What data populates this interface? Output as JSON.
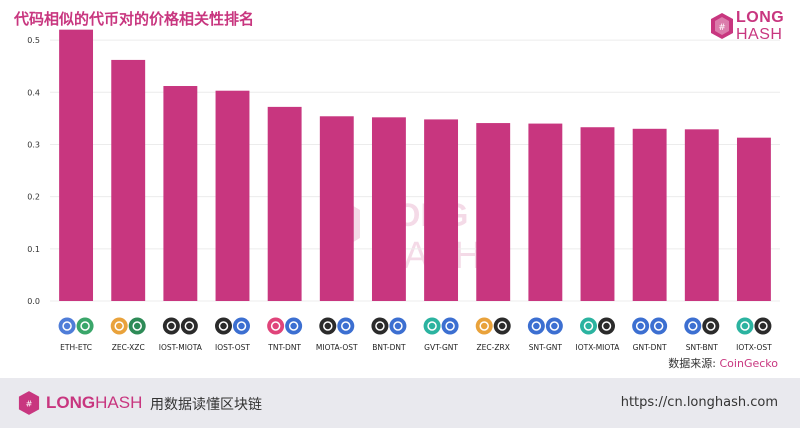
{
  "header": {
    "title": "代码相似的代币对的价格相关性排名"
  },
  "brand": {
    "line1": "LONG",
    "line2": "HASH",
    "color": "#c8367f"
  },
  "footer": {
    "brand_bold": "LONG",
    "brand_light": "HASH",
    "slogan": "用数据读懂区块链",
    "url": "https://cn.longhash.com"
  },
  "source": {
    "label": "数据来源:",
    "value": "CoinGecko"
  },
  "watermark": {
    "line1": "LONG",
    "line2": "HASH"
  },
  "chart_data": {
    "type": "bar",
    "title": "代码相似的代币对的价格相关性排名",
    "categories": [
      "ETH-ETC",
      "ZEC-XZC",
      "IOST-MIOTA",
      "IOST-OST",
      "TNT-DNT",
      "MIOTA-OST",
      "BNT-DNT",
      "GVT-GNT",
      "ZEC-ZRX",
      "SNT-GNT",
      "IOTX-MIOTA",
      "GNT-DNT",
      "SNT-BNT",
      "IOTX-OST"
    ],
    "values": [
      0.52,
      0.462,
      0.412,
      0.403,
      0.372,
      0.354,
      0.352,
      0.348,
      0.341,
      0.34,
      0.333,
      0.33,
      0.329,
      0.313
    ],
    "yticks": [
      "0.0",
      "0.1",
      "0.2",
      "0.3",
      "0.4",
      "0.5"
    ],
    "ylim": [
      0,
      0.55
    ],
    "bar_color": "#c8367f",
    "grid": true,
    "icons": [
      [
        "#4f7dd8",
        "#3aa66a"
      ],
      [
        "#e9a23b",
        "#2e8b57"
      ],
      [
        "#2b2b2b",
        "#2b2b2b"
      ],
      [
        "#2b2b2b",
        "#3c6fd1"
      ],
      [
        "#e0447a",
        "#3c6fd1"
      ],
      [
        "#2b2b2b",
        "#3c6fd1"
      ],
      [
        "#2b2b2b",
        "#3c6fd1"
      ],
      [
        "#2bb3a0",
        "#3c6fd1"
      ],
      [
        "#e9a23b",
        "#2b2b2b"
      ],
      [
        "#3c6fd1",
        "#3c6fd1"
      ],
      [
        "#2bb3a0",
        "#2b2b2b"
      ],
      [
        "#3c6fd1",
        "#3c6fd1"
      ],
      [
        "#3c6fd1",
        "#2b2b2b"
      ],
      [
        "#2bb3a0",
        "#2b2b2b"
      ]
    ]
  }
}
